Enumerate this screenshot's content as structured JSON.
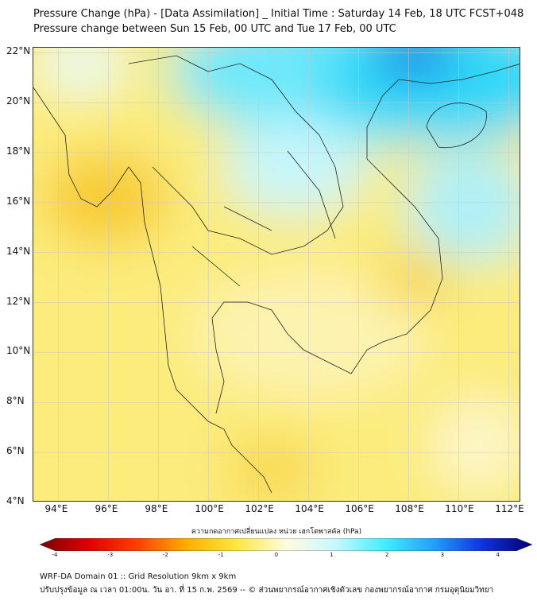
{
  "title": {
    "line1": "Pressure Change (hPa) - [Data Assimilation] _ Initial Time : Saturday 14 Feb, 18 UTC FCST+048",
    "line2": "Pressure change between Sun 15 Feb, 00 UTC and Tue 17 Feb, 00 UTC"
  },
  "map": {
    "lon_range": [
      93,
      112.5
    ],
    "lat_range": [
      4,
      22.2
    ],
    "lat_labels": [
      {
        "v": 22,
        "t": "22°N"
      },
      {
        "v": 20,
        "t": "20°N"
      },
      {
        "v": 18,
        "t": "18°N"
      },
      {
        "v": 16,
        "t": "16°N"
      },
      {
        "v": 14,
        "t": "14°N"
      },
      {
        "v": 12,
        "t": "12°N"
      },
      {
        "v": 10,
        "t": "10°N"
      },
      {
        "v": 8,
        "t": "8°N"
      },
      {
        "v": 6,
        "t": "6°N"
      },
      {
        "v": 4,
        "t": "4°N"
      }
    ],
    "lon_labels": [
      {
        "v": 94,
        "t": "94°E"
      },
      {
        "v": 96,
        "t": "96°E"
      },
      {
        "v": 98,
        "t": "98°E"
      },
      {
        "v": 100,
        "t": "100°E"
      },
      {
        "v": 102,
        "t": "102°E"
      },
      {
        "v": 104,
        "t": "104°E"
      },
      {
        "v": 106,
        "t": "106°E"
      },
      {
        "v": 108,
        "t": "108°E"
      },
      {
        "v": 110,
        "t": "110°E"
      },
      {
        "v": 112,
        "t": "112°E"
      }
    ]
  },
  "colorbar": {
    "label": "ความกดอากาศเปลี่ยนแปลง หน่วย เฮกโตพาสคัล (hPa)",
    "range": [
      -4,
      4
    ],
    "ticks": [
      "-4",
      "-3",
      "-2",
      "-1",
      "0",
      "1",
      "2",
      "3",
      "4"
    ],
    "colors": [
      "#7a0000",
      "#e00000",
      "#ff4000",
      "#ffb000",
      "#ffe840",
      "#fffbe0",
      "#c8f8ff",
      "#40f0ff",
      "#20a0ff",
      "#1030e0",
      "#000070"
    ]
  },
  "footer": {
    "line1": "WRF-DA Domain 01 :: Grid Resolution 9km x 9km",
    "line2": "ปรับปรุงข้อมูล ณ เวลา 01:00น. วัน อา. ที่ 15 ก.พ. 2569 -- © ส่วนพยากรณ์อากาศเชิงตัวเลข กองพยากรณ์อากาศ กรมอุตุนิยมวิทยา"
  }
}
